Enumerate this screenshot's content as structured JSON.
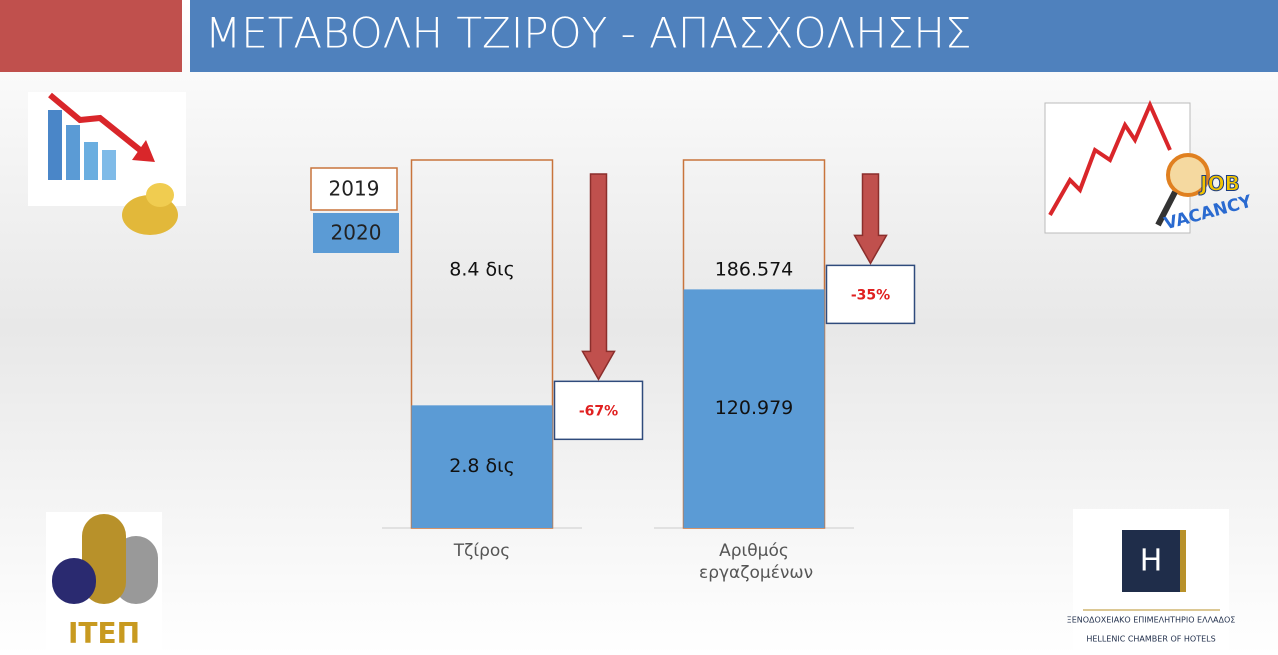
{
  "title": "ΜΕΤΑΒΟΛΗ ΤΖΙΡΟΥ - ΑΠΑΣΧΟΛΗΣΗΣ",
  "chart_data": {
    "type": "bar",
    "categories": [
      "Τζίρος",
      "Αριθμός εργαζομένων"
    ],
    "series": [
      {
        "name": "2019",
        "color": "#c8743c",
        "values": [
          8.4,
          186574
        ],
        "value_labels": [
          "8.4 δις",
          "186.574"
        ]
      },
      {
        "name": "2020",
        "color": "#5b9bd5",
        "values": [
          2.8,
          120979
        ],
        "value_labels": [
          "2.8 δις",
          "120.979"
        ]
      }
    ],
    "changes": {
      "color": "#c0504d",
      "values": [
        -67,
        -35
      ],
      "value_labels": [
        "-67%",
        "-35%"
      ]
    }
  },
  "logos": {
    "job": [
      "JOB",
      "VACANCY"
    ],
    "itep": "ΙΤΕΠ",
    "hotel": {
      "mark": "Η",
      "line1": "ΞΕΝΟΔΟΧΕΙΑΚΟ ΕΠΙΜΕΛΗΤΗΡΙΟ ΕΛΛΑΔΟΣ",
      "line2": "HELLENIC CHAMBER OF HOTELS"
    }
  }
}
